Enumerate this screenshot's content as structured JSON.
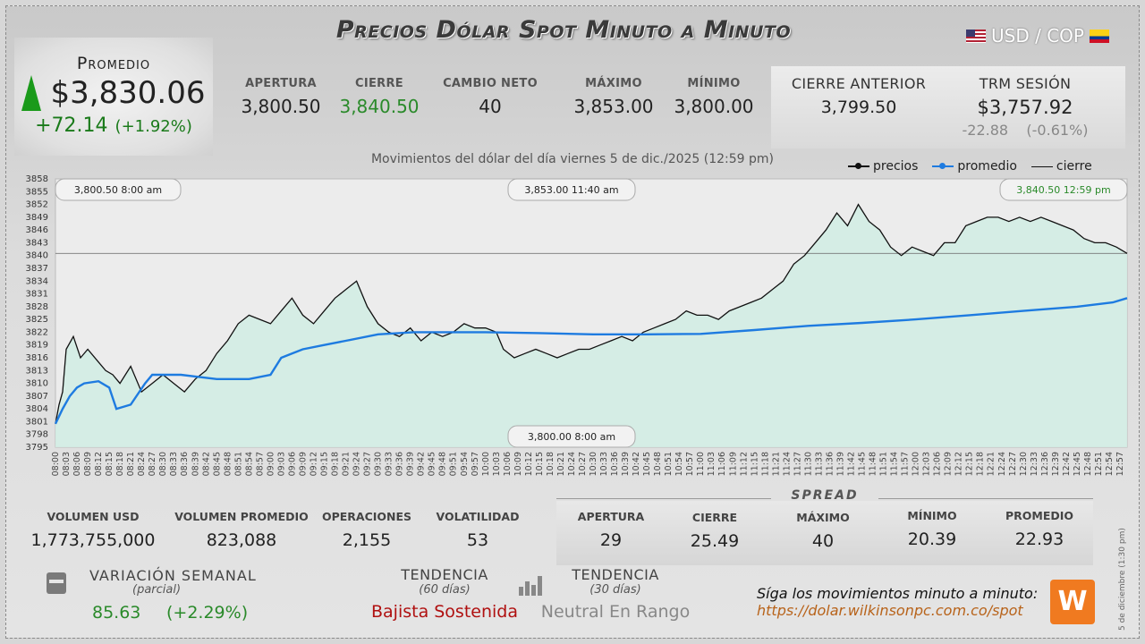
{
  "header": {
    "title": "Precios Dólar Spot Minuto a Minuto",
    "pair": "USD / COP"
  },
  "promedio": {
    "label": "Promedio",
    "value": "$3,830.06",
    "change": "+72.14",
    "change_pct": "(+1.92%)"
  },
  "stats": [
    {
      "label": "APERTURA",
      "value": "3,800.50",
      "highlight": false
    },
    {
      "label": "CIERRE",
      "value": "3,840.50",
      "highlight": true
    },
    {
      "label": "CAMBIO NETO",
      "value": "40",
      "highlight": false
    },
    {
      "label": "MÁXIMO",
      "value": "3,853.00",
      "highlight": false
    },
    {
      "label": "MÍNIMO",
      "value": "3,800.00",
      "highlight": false
    }
  ],
  "cierre_anterior": {
    "label": "CIERRE ANTERIOR",
    "value": "3,799.50"
  },
  "trm": {
    "label": "TRM SESIÓN",
    "value": "$3,757.92",
    "change": "-22.88",
    "change_pct": "(-0.61%)"
  },
  "subtitle": "Movimientos del dólar del día viernes 5 de dic./2025 (12:59 pm)",
  "legend": {
    "precios": "precios",
    "promedio": "promedio",
    "cierre": "cierre"
  },
  "colors": {
    "price": "#111111",
    "average": "#1e7be0",
    "fill": "#d3ede4",
    "green": "#2a8a2a",
    "red": "#b01010"
  },
  "chart_data": {
    "type": "line",
    "ylim": [
      3795,
      3858
    ],
    "yticks": [
      3795,
      3798,
      3801,
      3804,
      3807,
      3810,
      3813,
      3816,
      3819,
      3822,
      3825,
      3828,
      3831,
      3834,
      3837,
      3840,
      3843,
      3846,
      3849,
      3852,
      3855,
      3858
    ],
    "xticks": [
      "08:00",
      "08:03",
      "08:06",
      "08:09",
      "08:12",
      "08:15",
      "08:18",
      "08:21",
      "08:24",
      "08:27",
      "08:30",
      "08:33",
      "08:36",
      "08:39",
      "08:42",
      "08:45",
      "08:48",
      "08:51",
      "08:54",
      "08:57",
      "09:00",
      "09:03",
      "09:06",
      "09:09",
      "09:12",
      "09:15",
      "09:18",
      "09:21",
      "09:24",
      "09:27",
      "09:30",
      "09:33",
      "09:36",
      "09:39",
      "09:42",
      "09:45",
      "09:48",
      "09:51",
      "09:54",
      "09:57",
      "10:00",
      "10:03",
      "10:06",
      "10:09",
      "10:12",
      "10:15",
      "10:18",
      "10:21",
      "10:24",
      "10:27",
      "10:30",
      "10:33",
      "10:36",
      "10:39",
      "10:42",
      "10:45",
      "10:48",
      "10:51",
      "10:54",
      "10:57",
      "11:00",
      "11:03",
      "11:06",
      "11:09",
      "11:12",
      "11:15",
      "11:18",
      "11:21",
      "11:24",
      "11:27",
      "11:30",
      "11:33",
      "11:36",
      "11:39",
      "11:42",
      "11:45",
      "11:48",
      "11:51",
      "11:54",
      "11:57",
      "12:00",
      "12:03",
      "12:06",
      "12:09",
      "12:12",
      "12:15",
      "12:18",
      "12:21",
      "12:24",
      "12:27",
      "12:30",
      "12:33",
      "12:36",
      "12:39",
      "12:42",
      "12:45",
      "12:48",
      "12:51",
      "12:54",
      "12:57"
    ],
    "cierre_ref": 3840.5,
    "series": [
      {
        "name": "precios",
        "x": [
          "08:00",
          "08:01",
          "08:02",
          "08:03",
          "08:05",
          "08:07",
          "08:09",
          "08:12",
          "08:14",
          "08:16",
          "08:18",
          "08:21",
          "08:24",
          "08:27",
          "08:30",
          "08:33",
          "08:36",
          "08:39",
          "08:42",
          "08:45",
          "08:48",
          "08:51",
          "08:54",
          "08:57",
          "09:00",
          "09:03",
          "09:06",
          "09:09",
          "09:12",
          "09:15",
          "09:18",
          "09:21",
          "09:24",
          "09:27",
          "09:30",
          "09:33",
          "09:36",
          "09:39",
          "09:42",
          "09:45",
          "09:48",
          "09:51",
          "09:54",
          "09:57",
          "10:00",
          "10:03",
          "10:05",
          "10:08",
          "10:11",
          "10:14",
          "10:17",
          "10:20",
          "10:23",
          "10:26",
          "10:29",
          "10:32",
          "10:35",
          "10:38",
          "10:41",
          "10:44",
          "10:47",
          "10:50",
          "10:53",
          "10:56",
          "10:59",
          "11:02",
          "11:05",
          "11:08",
          "11:11",
          "11:14",
          "11:17",
          "11:20",
          "11:23",
          "11:26",
          "11:29",
          "11:32",
          "11:35",
          "11:38",
          "11:41",
          "11:44",
          "11:47",
          "11:50",
          "11:53",
          "11:56",
          "11:59",
          "12:02",
          "12:05",
          "12:08",
          "12:11",
          "12:14",
          "12:17",
          "12:20",
          "12:23",
          "12:26",
          "12:29",
          "12:32",
          "12:35",
          "12:38",
          "12:41",
          "12:44",
          "12:47",
          "12:50",
          "12:53",
          "12:56",
          "12:59"
        ],
        "y": [
          3800.5,
          3805,
          3808,
          3818,
          3821,
          3816,
          3818,
          3815,
          3813,
          3812,
          3810,
          3814,
          3808,
          3810,
          3812,
          3810,
          3808,
          3811,
          3813,
          3817,
          3820,
          3824,
          3826,
          3825,
          3824,
          3827,
          3830,
          3826,
          3824,
          3827,
          3830,
          3832,
          3834,
          3828,
          3824,
          3822,
          3821,
          3823,
          3820,
          3822,
          3821,
          3822,
          3824,
          3823,
          3823,
          3822,
          3818,
          3816,
          3817,
          3818,
          3817,
          3816,
          3817,
          3818,
          3818,
          3819,
          3820,
          3821,
          3820,
          3822,
          3823,
          3824,
          3825,
          3827,
          3826,
          3826,
          3825,
          3827,
          3828,
          3829,
          3830,
          3832,
          3834,
          3838,
          3840,
          3843,
          3846,
          3850,
          3847,
          3852,
          3848,
          3846,
          3842,
          3840,
          3842,
          3841,
          3840,
          3843,
          3843,
          3847,
          3848,
          3849,
          3849,
          3848,
          3849,
          3848,
          3849,
          3848,
          3847,
          3846,
          3844,
          3843,
          3843,
          3842,
          3840.5
        ]
      },
      {
        "name": "promedio",
        "x": [
          "08:00",
          "08:02",
          "08:04",
          "08:06",
          "08:08",
          "08:12",
          "08:15",
          "08:17",
          "08:21",
          "08:25",
          "08:27",
          "08:30",
          "08:35",
          "08:40",
          "08:45",
          "08:51",
          "08:54",
          "09:00",
          "09:03",
          "09:06",
          "09:09",
          "09:15",
          "09:21",
          "09:30",
          "09:40",
          "09:50",
          "10:00",
          "10:15",
          "10:30",
          "10:45",
          "11:00",
          "11:15",
          "11:30",
          "11:45",
          "12:00",
          "12:15",
          "12:30",
          "12:45",
          "12:55",
          "12:59"
        ],
        "y": [
          3800.5,
          3804,
          3807,
          3809,
          3810,
          3810.5,
          3809,
          3804,
          3805,
          3810,
          3812,
          3812,
          3812,
          3811.5,
          3811,
          3811,
          3811,
          3812,
          3816,
          3817,
          3818,
          3819,
          3820,
          3821.5,
          3822,
          3822,
          3822,
          3821.8,
          3821.5,
          3821.5,
          3821.6,
          3822.5,
          3823.5,
          3824.2,
          3825,
          3826,
          3827,
          3828,
          3829,
          3830
        ]
      }
    ],
    "annotations": {
      "open": {
        "price": "3,800.50",
        "time": "8:00 am"
      },
      "max": {
        "price": "3,853.00",
        "time": "11:40 am"
      },
      "close": {
        "price": "3,840.50",
        "time": "12:59 pm"
      },
      "min": {
        "price": "3,800.00",
        "time": "8:00 am"
      }
    }
  },
  "bottom_stats": [
    {
      "label": "VOLUMEN USD",
      "value": "1,773,755,000"
    },
    {
      "label": "VOLUMEN PROMEDIO",
      "value": "823,088"
    },
    {
      "label": "OPERACIONES",
      "value": "2,155"
    },
    {
      "label": "VOLATILIDAD",
      "value": "53"
    }
  ],
  "spread": {
    "title": "SPREAD",
    "items": [
      {
        "label": "APERTURA",
        "value": "29"
      },
      {
        "label": "CIERRE",
        "value": "25.49"
      },
      {
        "label": "MÁXIMO",
        "value": "40"
      },
      {
        "label": "MÍNIMO",
        "value": "20.39"
      },
      {
        "label": "PROMEDIO",
        "value": "22.93"
      }
    ]
  },
  "variacion": {
    "title": "VARIACIÓN SEMANAL",
    "sub": "(parcial)",
    "value": "85.63",
    "pct": "(+2.29%)"
  },
  "tendencia60": {
    "title": "TENDENCIA",
    "sub": "(60 días)",
    "value": "Bajista Sostenida"
  },
  "tendencia30": {
    "title": "TENDENCIA",
    "sub": "(30 días)",
    "value": "Neutral En Rango"
  },
  "follow": {
    "text": "Síga los movimientos minuto a minuto:",
    "url": "https://dolar.wilkinsonpc.com.co/spot"
  },
  "logo": {
    "letter": "W",
    "icon": "wilkinson-logo-icon"
  },
  "vertical_date": "5 de diciembre (1:30 pm)"
}
